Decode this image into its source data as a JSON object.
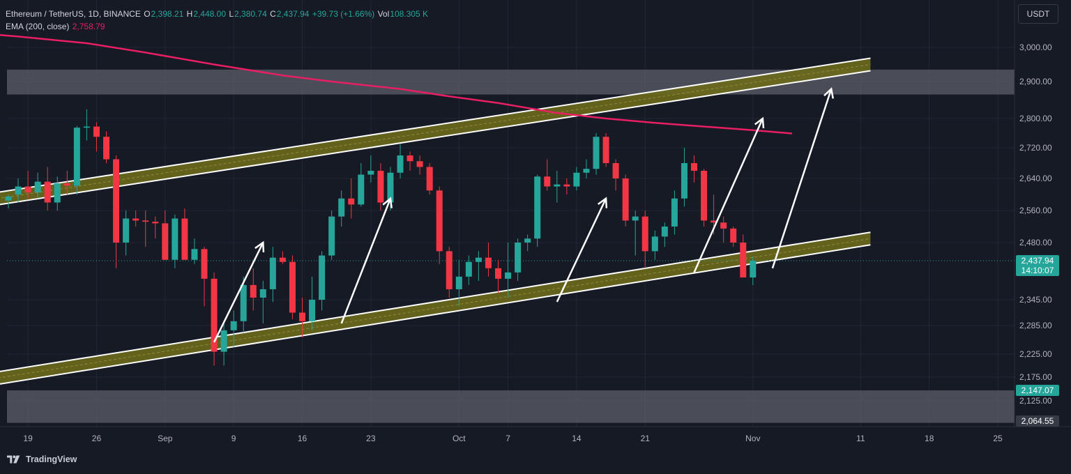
{
  "header": {
    "symbol": "Ethereum / TetherUS, 1D, BINANCE",
    "o_label": "O",
    "o_value": "2,398.21",
    "h_label": "H",
    "h_value": "2,448.00",
    "l_label": "L",
    "l_value": "2,380.74",
    "c_label": "C",
    "c_value": "2,437.94",
    "change": "+39.73 (+1.66%)",
    "vol_label": "Vol",
    "vol_value": "108.305 K",
    "ema_label": "EMA (200, close)",
    "ema_value": "2,758.79"
  },
  "currency_button": "USDT",
  "brand": "TradingView",
  "colors": {
    "bg": "#161a25",
    "up": "#26a69a",
    "down": "#f23645",
    "ema": "#e91e63",
    "channel": "#6b6a1c",
    "zone": "#5c5f6a"
  },
  "chart_data": {
    "type": "candlestick",
    "x_tick_labels": [
      "19",
      "26",
      "Sep",
      "9",
      "16",
      "23",
      "Oct",
      "7",
      "14",
      "21",
      "Nov",
      "11",
      "18",
      "25"
    ],
    "y_tick_labels": [
      "3,000.00",
      "2,900.00",
      "2,800.00",
      "2,720.00",
      "2,640.00",
      "2,560.00",
      "2,480.00",
      "2,345.00",
      "2,285.00",
      "2,225.00",
      "2,175.00",
      "2,125.00"
    ],
    "y_ticks": [
      3000,
      2900,
      2800,
      2720,
      2640,
      2560,
      2480,
      2345,
      2285,
      2225,
      2175,
      2125
    ],
    "price_badges": [
      {
        "value": 2437.94,
        "label": "2,437.94",
        "sub": "14:10:07",
        "color": "#26a69a"
      },
      {
        "value": 2147.07,
        "label": "2,147.07",
        "color": "#26a69a"
      },
      {
        "value": 2064.55,
        "label": "2,064.55",
        "color": "#363a45"
      }
    ],
    "current_price": 2437.94,
    "candles": [
      [
        2585,
        2600,
        2565,
        2595
      ],
      [
        2600,
        2640,
        2580,
        2620
      ],
      [
        2620,
        2660,
        2590,
        2605
      ],
      [
        2605,
        2655,
        2590,
        2632
      ],
      [
        2632,
        2670,
        2560,
        2580
      ],
      [
        2580,
        2645,
        2560,
        2628
      ],
      [
        2628,
        2660,
        2600,
        2622
      ],
      [
        2622,
        2780,
        2600,
        2775
      ],
      [
        2775,
        2825,
        2740,
        2778
      ],
      [
        2778,
        2790,
        2710,
        2750
      ],
      [
        2750,
        2765,
        2680,
        2690
      ],
      [
        2690,
        2700,
        2420,
        2480
      ],
      [
        2480,
        2560,
        2450,
        2540
      ],
      [
        2540,
        2560,
        2520,
        2535
      ],
      [
        2535,
        2560,
        2470,
        2532
      ],
      [
        2532,
        2545,
        2490,
        2528
      ],
      [
        2528,
        2560,
        2440,
        2440
      ],
      [
        2440,
        2550,
        2420,
        2540
      ],
      [
        2540,
        2565,
        2440,
        2440
      ],
      [
        2440,
        2490,
        2430,
        2465
      ],
      [
        2465,
        2470,
        2330,
        2395
      ],
      [
        2395,
        2410,
        2200,
        2230
      ],
      [
        2230,
        2290,
        2200,
        2275
      ],
      [
        2275,
        2320,
        2240,
        2295
      ],
      [
        2295,
        2400,
        2270,
        2380
      ],
      [
        2380,
        2420,
        2320,
        2350
      ],
      [
        2350,
        2390,
        2290,
        2370
      ],
      [
        2370,
        2470,
        2340,
        2445
      ],
      [
        2445,
        2460,
        2430,
        2435
      ],
      [
        2435,
        2450,
        2300,
        2315
      ],
      [
        2315,
        2350,
        2260,
        2295
      ],
      [
        2295,
        2400,
        2275,
        2345
      ],
      [
        2345,
        2460,
        2320,
        2450
      ],
      [
        2450,
        2560,
        2440,
        2545
      ],
      [
        2545,
        2610,
        2520,
        2590
      ],
      [
        2590,
        2640,
        2540,
        2575
      ],
      [
        2575,
        2680,
        2570,
        2650
      ],
      [
        2650,
        2700,
        2630,
        2660
      ],
      [
        2660,
        2680,
        2560,
        2580
      ],
      [
        2580,
        2670,
        2560,
        2655
      ],
      [
        2655,
        2730,
        2640,
        2700
      ],
      [
        2700,
        2710,
        2660,
        2685
      ],
      [
        2685,
        2700,
        2650,
        2670
      ],
      [
        2670,
        2680,
        2600,
        2610
      ],
      [
        2610,
        2620,
        2430,
        2460
      ],
      [
        2460,
        2470,
        2350,
        2370
      ],
      [
        2370,
        2440,
        2330,
        2400
      ],
      [
        2400,
        2450,
        2380,
        2435
      ],
      [
        2435,
        2460,
        2390,
        2445
      ],
      [
        2445,
        2480,
        2400,
        2420
      ],
      [
        2420,
        2440,
        2360,
        2395
      ],
      [
        2395,
        2480,
        2350,
        2410
      ],
      [
        2410,
        2490,
        2390,
        2480
      ],
      [
        2480,
        2500,
        2460,
        2490
      ],
      [
        2490,
        2650,
        2470,
        2645
      ],
      [
        2645,
        2690,
        2610,
        2620
      ],
      [
        2620,
        2660,
        2580,
        2625
      ],
      [
        2625,
        2640,
        2600,
        2620
      ],
      [
        2620,
        2670,
        2610,
        2655
      ],
      [
        2655,
        2690,
        2640,
        2665
      ],
      [
        2665,
        2760,
        2650,
        2750
      ],
      [
        2750,
        2760,
        2670,
        2680
      ],
      [
        2680,
        2690,
        2610,
        2640
      ],
      [
        2640,
        2650,
        2520,
        2535
      ],
      [
        2535,
        2560,
        2450,
        2545
      ],
      [
        2545,
        2560,
        2420,
        2460
      ],
      [
        2460,
        2510,
        2440,
        2495
      ],
      [
        2495,
        2530,
        2470,
        2520
      ],
      [
        2520,
        2610,
        2500,
        2590
      ],
      [
        2590,
        2720,
        2570,
        2680
      ],
      [
        2680,
        2700,
        2630,
        2660
      ],
      [
        2660,
        2665,
        2520,
        2535
      ],
      [
        2535,
        2600,
        2500,
        2530
      ],
      [
        2530,
        2545,
        2480,
        2515
      ],
      [
        2515,
        2520,
        2470,
        2480
      ],
      [
        2480,
        2500,
        2400,
        2398
      ],
      [
        2398,
        2448,
        2380,
        2438
      ]
    ],
    "ema_200": [
      [
        -13,
        3100
      ],
      [
        -5,
        3075
      ],
      [
        1,
        3052
      ],
      [
        8,
        3020
      ],
      [
        14,
        2985
      ],
      [
        21,
        2950
      ],
      [
        28,
        2918
      ],
      [
        33,
        2900
      ],
      [
        40,
        2880
      ],
      [
        45,
        2860
      ],
      [
        50,
        2842
      ],
      [
        56,
        2815
      ],
      [
        61,
        2800
      ],
      [
        66,
        2788
      ],
      [
        70,
        2780
      ],
      [
        76,
        2768
      ],
      [
        80,
        2759
      ]
    ],
    "channel": {
      "upper": {
        "x": [
          -13,
          88
        ],
        "y": [
          2545,
          2950
        ]
      },
      "lower": {
        "x": [
          -5,
          88
        ],
        "y": [
          2160,
          2490
        ]
      }
    },
    "zones": [
      {
        "y_top": 2935,
        "y_bottom": 2865
      },
      {
        "y_top": 2147,
        "y_bottom": 2060
      }
    ],
    "arrows": [
      [
        [
          21,
          2250
        ],
        [
          26,
          2480
        ]
      ],
      [
        [
          34,
          2290
        ],
        [
          39,
          2590
        ]
      ],
      [
        [
          56,
          2340
        ],
        [
          61,
          2590
        ]
      ],
      [
        [
          70,
          2410
        ],
        [
          77,
          2800
        ]
      ],
      [
        [
          78,
          2420
        ],
        [
          84,
          2880
        ]
      ]
    ]
  }
}
